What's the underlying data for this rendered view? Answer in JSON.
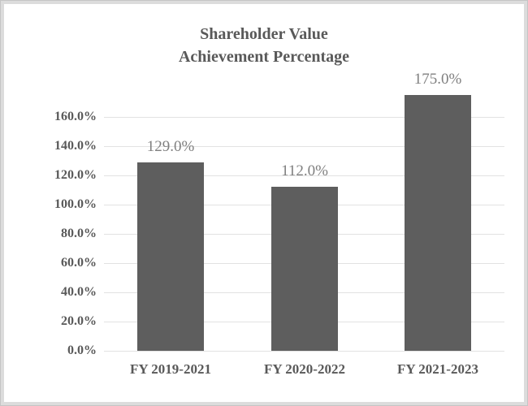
{
  "chart_data": {
    "type": "bar",
    "title": "Shareholder Value Achievement Percentage",
    "title_lines": [
      "Shareholder Value",
      "Achievement Percentage"
    ],
    "categories": [
      "FY 2019-2021",
      "FY 2020-2022",
      "FY 2021-2023"
    ],
    "values": [
      129.0,
      112.0,
      175.0
    ],
    "data_labels": [
      "129.0%",
      "112.0%",
      "175.0%"
    ],
    "y_ticks": [
      {
        "value": 160,
        "label": "160.0%"
      },
      {
        "value": 140,
        "label": "140.0%"
      },
      {
        "value": 120,
        "label": "120.0%"
      },
      {
        "value": 100,
        "label": "100.0%"
      },
      {
        "value": 80,
        "label": "80.0%"
      },
      {
        "value": 60,
        "label": "60.0%"
      },
      {
        "value": 40,
        "label": "40.0%"
      },
      {
        "value": 20,
        "label": "20.0%"
      },
      {
        "value": 0,
        "label": "0.0%"
      }
    ],
    "ylim": [
      0,
      175
    ],
    "grid": true,
    "legend": "none",
    "colors": {
      "bar_fill": "#5e5e5e",
      "title_text": "#595959",
      "axis_text": "#595959",
      "data_label_text": "#7f7f7f",
      "gridline": "#e2e2e2",
      "frame_border": "#c5c5c5"
    }
  }
}
